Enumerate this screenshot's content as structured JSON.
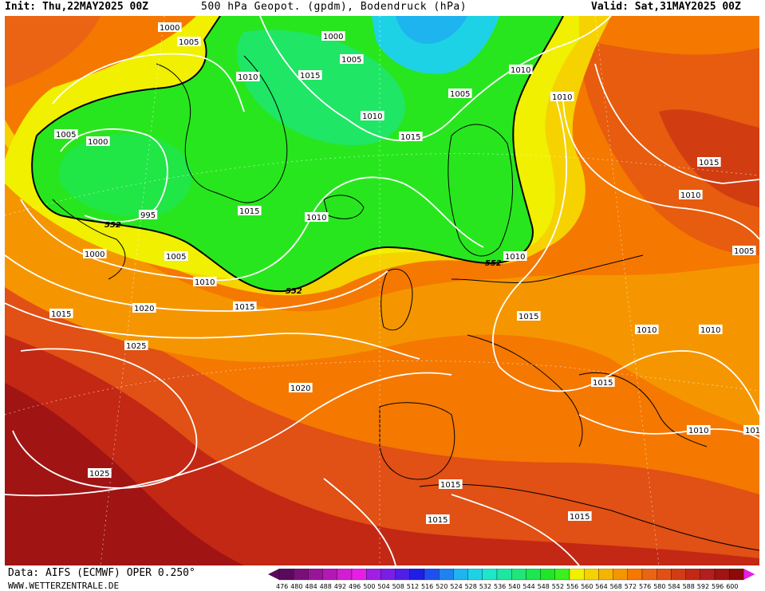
{
  "header": {
    "init": "Init: Thu,22MAY2025 00Z",
    "title": "500 hPa Geopot. (gpdm), Bodendruck (hPa)",
    "valid": "Valid: Sat,31MAY2025 00Z"
  },
  "footer": {
    "source": "Data: AIFS (ECMWF) OPER 0.250°",
    "website": "WWW.WETTERZENTRALE.DE"
  },
  "colors": {
    "land_outline": "#000000",
    "isobar": "#ffffff",
    "contour_552": "#000000"
  },
  "scale": {
    "values": [
      "476",
      "480",
      "484",
      "488",
      "492",
      "496",
      "500",
      "504",
      "508",
      "512",
      "516",
      "520",
      "524",
      "528",
      "532",
      "536",
      "540",
      "544",
      "548",
      "552",
      "556",
      "560",
      "564",
      "568",
      "572",
      "576",
      "580",
      "584",
      "588",
      "592",
      "596",
      "600"
    ],
    "colors": [
      "#5a0a5a",
      "#7a0f7a",
      "#9a149a",
      "#b418b4",
      "#d21ed2",
      "#e61ee6",
      "#a01ee6",
      "#7a1ee6",
      "#501ee6",
      "#1e1ee6",
      "#1e50f0",
      "#1e82f0",
      "#1eb4f0",
      "#1ed2e6",
      "#1ee6c8",
      "#1ee6a0",
      "#1ee678",
      "#1ee650",
      "#1ee628",
      "#3cf01e",
      "#f0f000",
      "#f5d200",
      "#f5b400",
      "#f59600",
      "#f57800",
      "#eb6414",
      "#e15014",
      "#d23c14",
      "#c32814",
      "#b41e1e",
      "#a01414",
      "#8c0a0a"
    ]
  },
  "map_labels": {
    "isobars": [
      {
        "text": "1000"
      },
      {
        "text": "1005"
      },
      {
        "text": "1000"
      },
      {
        "text": "1010"
      },
      {
        "text": "1015"
      },
      {
        "text": "1005"
      },
      {
        "text": "1010"
      },
      {
        "text": "1010"
      },
      {
        "text": "1005"
      },
      {
        "text": "1010"
      },
      {
        "text": "1005"
      },
      {
        "text": "1000"
      },
      {
        "text": "995"
      },
      {
        "text": "1015"
      },
      {
        "text": "1015"
      },
      {
        "text": "1015"
      },
      {
        "text": "1010"
      },
      {
        "text": "1000"
      },
      {
        "text": "1005"
      },
      {
        "text": "1010"
      },
      {
        "text": "1005"
      },
      {
        "text": "1010"
      },
      {
        "text": "1015"
      },
      {
        "text": "1020"
      },
      {
        "text": "1015"
      },
      {
        "text": "1025"
      },
      {
        "text": "1015"
      },
      {
        "text": "1010"
      },
      {
        "text": "1010"
      },
      {
        "text": "1010"
      },
      {
        "text": "1015"
      },
      {
        "text": "1020"
      },
      {
        "text": "1010"
      },
      {
        "text": "101"
      },
      {
        "text": "1025"
      },
      {
        "text": "1015"
      },
      {
        "text": "1015"
      },
      {
        "text": "1015"
      }
    ],
    "geopotential": [
      {
        "text": "552"
      },
      {
        "text": "552"
      },
      {
        "text": "552"
      }
    ]
  }
}
